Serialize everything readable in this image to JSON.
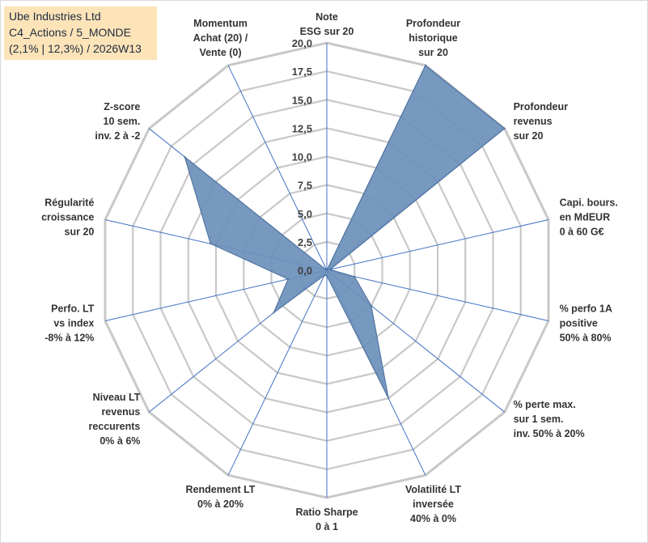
{
  "title_box": {
    "line1": "Ube Industries Ltd",
    "line2": "C4_Actions / 5_MONDE",
    "line3": "(2,1% | 12,3%) / 2026W13"
  },
  "chart_data": {
    "type": "radar",
    "title": "Ube Industries Ltd",
    "r_range": [
      0,
      20
    ],
    "r_tick_step": 2.5,
    "r_tick_labels": [
      "0,0",
      "2,5",
      "5,0",
      "7,5",
      "10,0",
      "12,5",
      "15,0",
      "17,5",
      "20,0"
    ],
    "grid": true,
    "colors": {
      "fill": "#6b8fba",
      "stroke": "#4a6e9c",
      "grid": "#c8c8c8",
      "spoke": "#4472c4"
    },
    "axes": [
      {
        "label": [
          "Note",
          "ESG sur 20"
        ],
        "value": 0
      },
      {
        "label": [
          "Profondeur",
          "historique",
          "sur 20"
        ],
        "value": 20
      },
      {
        "label": [
          "Profondeur",
          "revenus",
          "sur 20"
        ],
        "value": 20
      },
      {
        "label": [
          "Capi. bours.",
          "en MdEUR",
          "0 à 60 G€"
        ],
        "value": 0.3
      },
      {
        "label": [
          "% perfo 1A",
          "positive",
          "50% à 80%"
        ],
        "value": 2.5
      },
      {
        "label": [
          "% perte max.",
          "sur 1 sem.",
          "inv. 50% à 20%"
        ],
        "value": 5
      },
      {
        "label": [
          "Volatilité LT",
          "inversée",
          "40% à 0%"
        ],
        "value": 12.5
      },
      {
        "label": [
          "Ratio Sharpe",
          "0 à 1"
        ],
        "value": 0.5
      },
      {
        "label": [
          "Rendement LT",
          "0% à 20%"
        ],
        "value": 0.5
      },
      {
        "label": [
          "Niveau LT",
          "revenus",
          "reccurents",
          "0% à 6%"
        ],
        "value": 6
      },
      {
        "label": [
          "Perfo. LT",
          "vs index",
          "-8% à 12%"
        ],
        "value": 3.5
      },
      {
        "label": [
          "Régularité",
          "croissance",
          "sur 20"
        ],
        "value": 10.5
      },
      {
        "label": [
          "Z-score",
          "10 sem.",
          "inv. 2 à -2"
        ],
        "value": 16
      },
      {
        "label": [
          "Momentum",
          "Achat (20) /",
          "Vente (0)"
        ],
        "value": 0
      }
    ]
  }
}
